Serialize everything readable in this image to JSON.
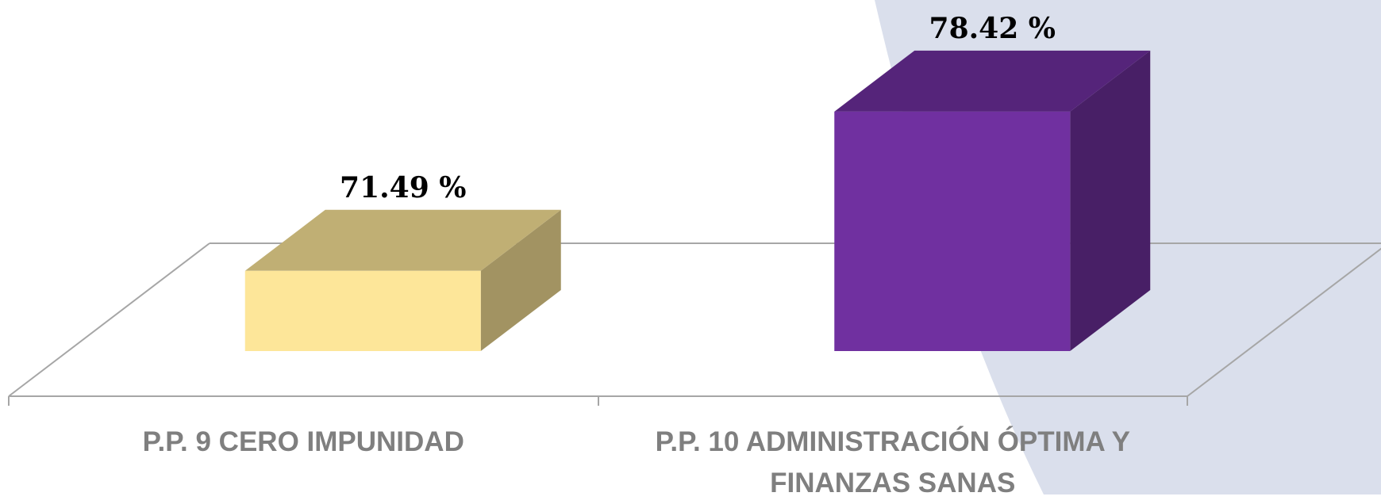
{
  "chart_data": {
    "type": "bar3d",
    "categories": [
      "P.P. 9 CERO IMPUNIDAD",
      "P.P. 10 ADMINISTRACIÓN ÓPTIMA Y FINANZAS SANAS"
    ],
    "values": [
      71.49,
      78.42
    ],
    "value_labels": [
      "71.49 %",
      "78.42 %"
    ],
    "colors": [
      "#fde699",
      "#7030a0"
    ],
    "ylim": [
      68,
      80
    ]
  }
}
